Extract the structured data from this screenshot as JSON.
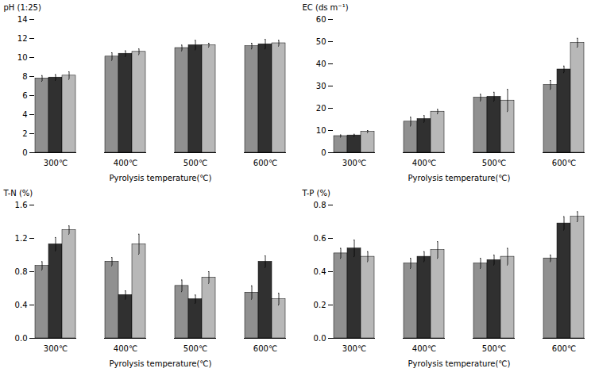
{
  "chart_data": [
    {
      "type": "bar",
      "categories": [
        "300℃",
        "400℃",
        "500℃",
        "600℃"
      ],
      "xlabel": "Pyrolysis temperature(℃)",
      "ylabel": "pH (1:25)",
      "ylim": [
        0,
        14
      ],
      "yticks": [
        0,
        2,
        4,
        6,
        8,
        10,
        12,
        14
      ],
      "series": [
        {
          "color": "#909090",
          "values": [
            7.8,
            10.1,
            11.0,
            11.2
          ],
          "errors": [
            0.3,
            0.4,
            0.3,
            0.3
          ]
        },
        {
          "color": "#303030",
          "values": [
            7.9,
            10.4,
            11.3,
            11.4
          ],
          "errors": [
            0.3,
            0.3,
            0.5,
            0.5
          ]
        },
        {
          "color": "#b8b8b8",
          "values": [
            8.1,
            10.6,
            11.3,
            11.5
          ],
          "errors": [
            0.4,
            0.3,
            0.2,
            0.3
          ]
        }
      ]
    },
    {
      "type": "bar",
      "categories": [
        "300℃",
        "400℃",
        "500℃",
        "600℃"
      ],
      "xlabel": "Pyrolysis temperature(℃)",
      "ylabel": "EC (ds m⁻¹)",
      "ylim": [
        0,
        60
      ],
      "yticks": [
        0,
        10,
        20,
        30,
        40,
        50,
        60
      ],
      "series": [
        {
          "color": "#909090",
          "values": [
            7.5,
            14.0,
            24.8,
            30.5
          ],
          "errors": [
            0.5,
            2.0,
            1.5,
            2.0
          ]
        },
        {
          "color": "#303030",
          "values": [
            7.8,
            15.2,
            25.2,
            37.5
          ],
          "errors": [
            0.5,
            1.5,
            2.0,
            1.5
          ]
        },
        {
          "color": "#b8b8b8",
          "values": [
            9.5,
            18.5,
            23.5,
            49.5
          ],
          "errors": [
            0.5,
            1.0,
            5.0,
            2.0
          ]
        }
      ]
    },
    {
      "type": "bar",
      "categories": [
        "300℃",
        "400℃",
        "500℃",
        "600℃"
      ],
      "xlabel": "Pyrolysis temperature(℃)",
      "ylabel": "T-N (%)",
      "ylim": [
        0,
        1.6
      ],
      "yticks": [
        {
          "value": 0,
          "label": "0.0"
        },
        0.4,
        0.8,
        1.2,
        1.6
      ],
      "series": [
        {
          "color": "#909090",
          "values": [
            0.87,
            0.92,
            0.63,
            0.55
          ],
          "errors": [
            0.05,
            0.05,
            0.07,
            0.08
          ]
        },
        {
          "color": "#303030",
          "values": [
            1.13,
            0.52,
            0.47,
            0.92
          ],
          "errors": [
            0.08,
            0.05,
            0.05,
            0.07
          ]
        },
        {
          "color": "#b8b8b8",
          "values": [
            1.3,
            1.13,
            0.73,
            0.47
          ],
          "errors": [
            0.05,
            0.12,
            0.07,
            0.07
          ]
        }
      ]
    },
    {
      "type": "bar",
      "categories": [
        "300℃",
        "400℃",
        "500℃",
        "600℃"
      ],
      "xlabel": "Pyrolysis temperature(℃)",
      "ylabel": "T-P (%)",
      "ylim": [
        0,
        0.8
      ],
      "yticks": [
        {
          "value": 0,
          "label": "0.0"
        },
        0.2,
        0.4,
        0.6,
        0.8
      ],
      "series": [
        {
          "color": "#909090",
          "values": [
            0.51,
            0.45,
            0.45,
            0.48
          ],
          "errors": [
            0.03,
            0.03,
            0.03,
            0.02
          ]
        },
        {
          "color": "#303030",
          "values": [
            0.54,
            0.49,
            0.47,
            0.69
          ],
          "errors": [
            0.05,
            0.03,
            0.03,
            0.04
          ]
        },
        {
          "color": "#b8b8b8",
          "values": [
            0.49,
            0.53,
            0.49,
            0.73
          ],
          "errors": [
            0.03,
            0.05,
            0.05,
            0.03
          ]
        }
      ]
    }
  ]
}
